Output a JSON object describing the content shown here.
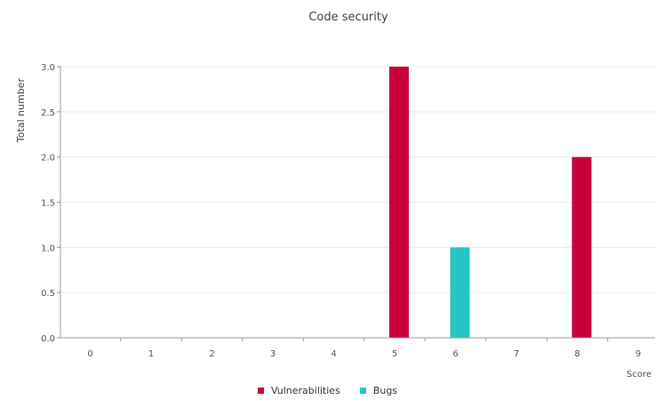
{
  "chart_data": {
    "type": "bar",
    "title": "Code security",
    "ylabel": "Total number",
    "xlabel": "Score",
    "ylim": [
      0,
      3.0
    ],
    "yticks": [
      "0.0",
      "0.5",
      "1.0",
      "1.5",
      "2.0",
      "2.5",
      "3.0"
    ],
    "categories": [
      "0",
      "1",
      "2",
      "3",
      "4",
      "5",
      "6",
      "7",
      "8",
      "9"
    ],
    "series": [
      {
        "name": "Vulnerabilities",
        "color": "#c8003a",
        "values": [
          0,
          0,
          0,
          0,
          0,
          3,
          0,
          0,
          2,
          0
        ]
      },
      {
        "name": "Bugs",
        "color": "#27c4c4",
        "values": [
          0,
          0,
          0,
          0,
          0,
          0,
          1,
          0,
          0,
          0
        ]
      }
    ],
    "grid": true,
    "legend_position": "bottom"
  }
}
